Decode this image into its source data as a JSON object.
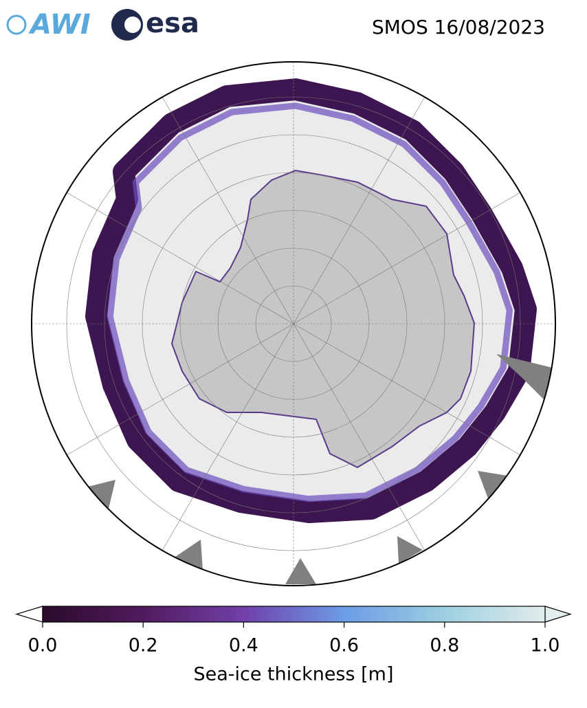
{
  "header": {
    "logos": [
      "AWI",
      "esa"
    ],
    "title": "SMOS 16/08/2023"
  },
  "colorbar": {
    "label": "Sea-ice thickness [m]",
    "lim": [
      0,
      1
    ],
    "ticks": [
      {
        "value": 0,
        "label": "0.0"
      },
      {
        "value": 0.2,
        "label": "0.2"
      },
      {
        "value": 0.4,
        "label": "0.4"
      },
      {
        "value": 0.6,
        "label": "0.6"
      },
      {
        "value": 0.8,
        "label": "0.8"
      },
      {
        "value": 1,
        "label": "1.0"
      }
    ]
  }
}
